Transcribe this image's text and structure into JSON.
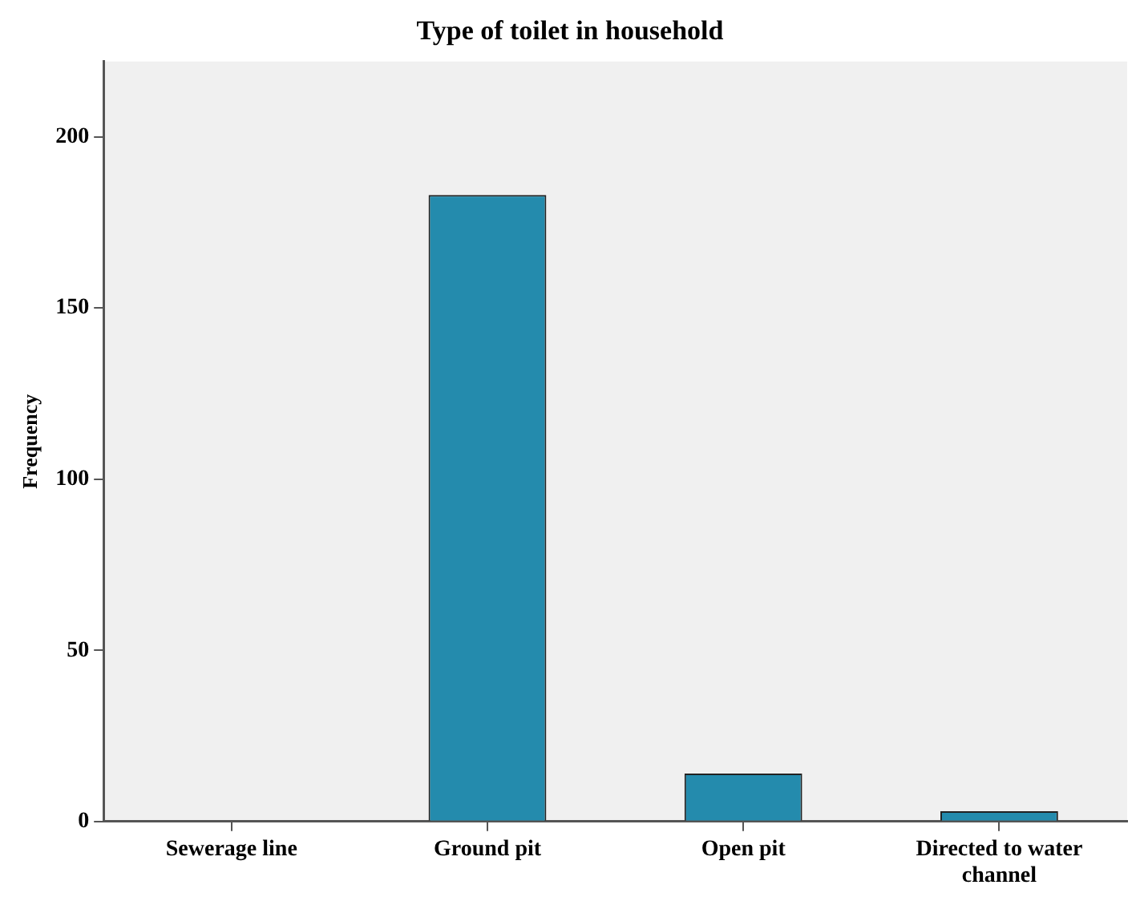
{
  "chart_data": {
    "type": "bar",
    "title": "Type of toilet in household",
    "ylabel": "Frequency",
    "categories": [
      "Sewerage line",
      "Ground pit",
      "Open pit",
      "Directed to water channel"
    ],
    "values": [
      0,
      183,
      14,
      3
    ],
    "color": "#248bad",
    "ylim": [
      0,
      222
    ],
    "yticks": [
      0,
      50,
      100,
      150,
      200
    ],
    "grid": false,
    "legend": false
  }
}
